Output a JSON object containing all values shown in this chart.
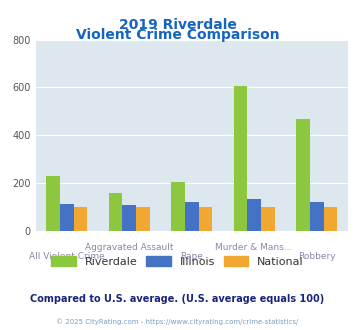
{
  "title_line1": "2019 Riverdale",
  "title_line2": "Violent Crime Comparison",
  "categories_top": [
    "",
    "Aggravated Assault",
    "",
    "Murder & Mans...",
    ""
  ],
  "categories_bottom": [
    "All Violent Crime",
    "",
    "Rape",
    "",
    "Robbery"
  ],
  "riverdale": [
    230,
    158,
    205,
    608,
    468
  ],
  "illinois": [
    113,
    108,
    120,
    135,
    123
  ],
  "national": [
    100,
    100,
    100,
    100,
    100
  ],
  "color_riverdale": "#8dc63f",
  "color_illinois": "#4472c4",
  "color_national": "#f0a830",
  "ylim": [
    0,
    800
  ],
  "yticks": [
    0,
    200,
    400,
    600,
    800
  ],
  "bg_color": "#dce8ee",
  "title_color": "#1565c0",
  "xlabel_top_color": "#888888",
  "xlabel_bottom_color": "#888888",
  "footer_text": "Compared to U.S. average. (U.S. average equals 100)",
  "footer_color": "#1a237e",
  "copyright_text": "© 2025 CityRating.com - https://www.cityrating.com/crime-statistics/",
  "copyright_color": "#7a9fc0",
  "legend_labels": [
    "Riverdale",
    "Illinois",
    "National"
  ],
  "bar_width": 0.22
}
